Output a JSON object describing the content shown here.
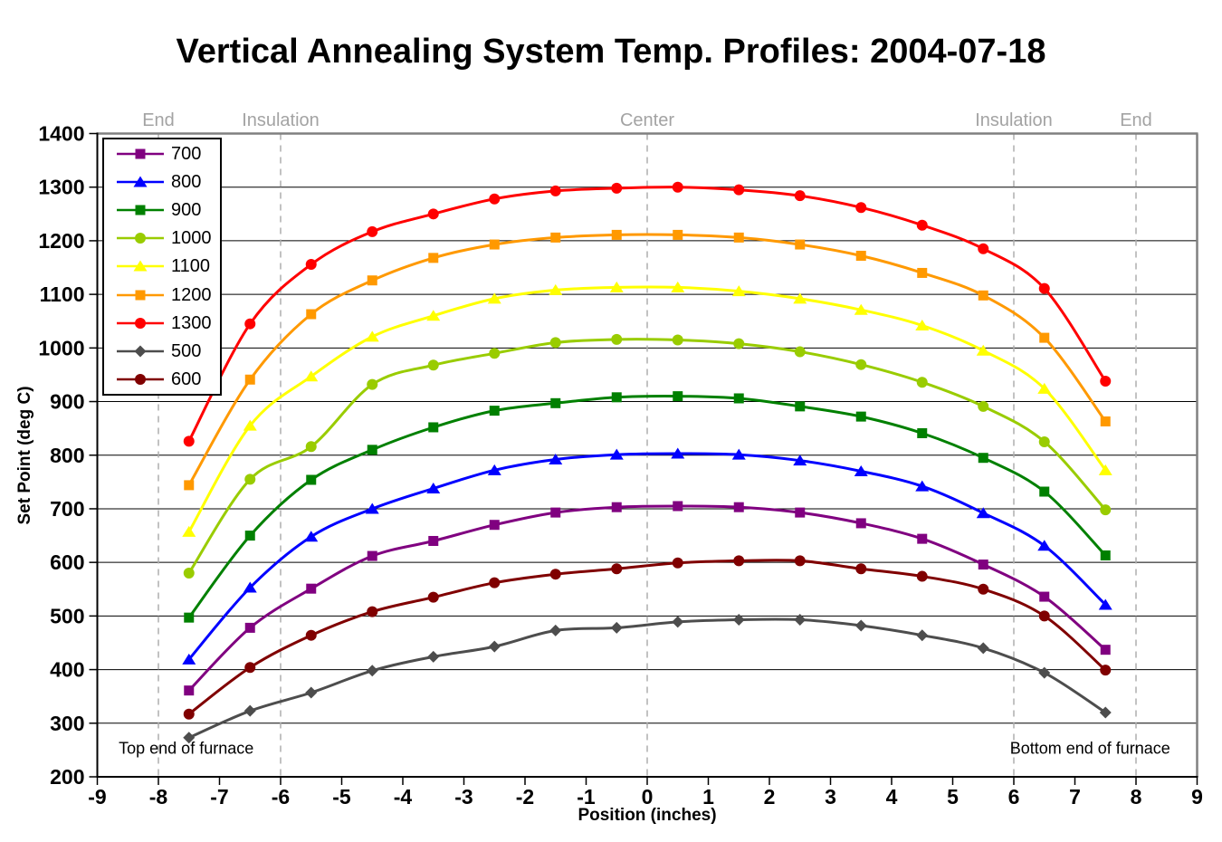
{
  "chart_data": {
    "type": "line",
    "title": "Vertical Annealing System Temp. Profiles: 2004-07-18",
    "xlabel": "Position (inches)",
    "ylabel": "Set Point (deg C)",
    "xlim": [
      -9,
      9
    ],
    "ylim": [
      200,
      1400
    ],
    "x_ticks": [
      -9,
      -8,
      -7,
      -6,
      -5,
      -4,
      -3,
      -2,
      -1,
      0,
      1,
      2,
      3,
      4,
      5,
      6,
      7,
      8,
      9
    ],
    "y_ticks": [
      200,
      300,
      400,
      500,
      600,
      700,
      800,
      900,
      1000,
      1100,
      1200,
      1300,
      1400
    ],
    "grid": "horizontal solid black lines every 100; vertical dashed gray lines at zone boundaries only",
    "legend_position": "top-left",
    "zone_lines_x": [
      -8,
      -6,
      0,
      6,
      8
    ],
    "zone_labels": [
      {
        "label": "End",
        "x": -8
      },
      {
        "label": "Insulation",
        "x": -6
      },
      {
        "label": "Center",
        "x": 0
      },
      {
        "label": "Insulation",
        "x": 6
      },
      {
        "label": "End",
        "x": 8
      }
    ],
    "annotations": [
      {
        "text": "Top end of furnace",
        "x": -8.65,
        "y": 252,
        "anchor": "start"
      },
      {
        "text": "Bottom end of furnace",
        "x": 8.56,
        "y": 252,
        "anchor": "end"
      }
    ],
    "x": [
      -7.5,
      -6.5,
      -5.5,
      -4.5,
      -3.5,
      -2.5,
      -1.5,
      -0.5,
      0.5,
      1.5,
      2.5,
      3.5,
      4.5,
      5.5,
      6.5,
      7.5
    ],
    "series": [
      {
        "legend_label": "700",
        "color": "#800080",
        "marker": "square",
        "values": [
          361,
          478,
          551,
          612,
          640,
          670,
          693,
          703,
          705,
          703,
          693,
          673,
          644,
          596,
          536,
          437
        ]
      },
      {
        "legend_label": "800",
        "color": "#0000FF",
        "marker": "triangle",
        "values": [
          419,
          553,
          648,
          700,
          738,
          772,
          792,
          801,
          803,
          801,
          790,
          770,
          742,
          692,
          631,
          521
        ]
      },
      {
        "legend_label": "900",
        "color": "#008000",
        "marker": "square",
        "values": [
          497,
          650,
          754,
          810,
          852,
          883,
          897,
          908,
          910,
          906,
          891,
          872,
          841,
          795,
          732,
          613
        ]
      },
      {
        "legend_label": "1000",
        "color": "#99CC00",
        "marker": "circle",
        "values": [
          580,
          755,
          816,
          932,
          968,
          990,
          1010,
          1016,
          1015,
          1008,
          993,
          969,
          936,
          891,
          825,
          698
        ]
      },
      {
        "legend_label": "1100",
        "color": "#FFFF00",
        "marker": "triangle",
        "values": [
          657,
          855,
          947,
          1021,
          1060,
          1092,
          1108,
          1113,
          1113,
          1106,
          1092,
          1071,
          1042,
          995,
          924,
          772
        ]
      },
      {
        "legend_label": "1200",
        "color": "#FF9900",
        "marker": "square",
        "values": [
          744,
          941,
          1063,
          1126,
          1168,
          1193,
          1206,
          1211,
          1211,
          1206,
          1193,
          1172,
          1140,
          1098,
          1019,
          863
        ]
      },
      {
        "legend_label": "1300",
        "color": "#FF0000",
        "marker": "circle",
        "values": [
          826,
          1045,
          1156,
          1217,
          1250,
          1278,
          1293,
          1298,
          1300,
          1295,
          1284,
          1262,
          1229,
          1185,
          1111,
          938
        ]
      },
      {
        "legend_label": "500",
        "color": "#4D4D4D",
        "marker": "diamond",
        "values": [
          273,
          323,
          357,
          398,
          424,
          443,
          473,
          478,
          489,
          493,
          493,
          482,
          464,
          440,
          394,
          320
        ]
      },
      {
        "legend_label": "600",
        "color": "#800000",
        "marker": "circle",
        "values": [
          317,
          404,
          464,
          508,
          535,
          562,
          578,
          588,
          599,
          603,
          603,
          588,
          574,
          550,
          500,
          399
        ]
      }
    ],
    "colors": {
      "grid_line": "#000000",
      "zone_dash_line": "#ADADAD",
      "plot_border_gray": "#808080",
      "axis_black": "#000000",
      "zone_label_gray": "#A3A3A3"
    }
  }
}
